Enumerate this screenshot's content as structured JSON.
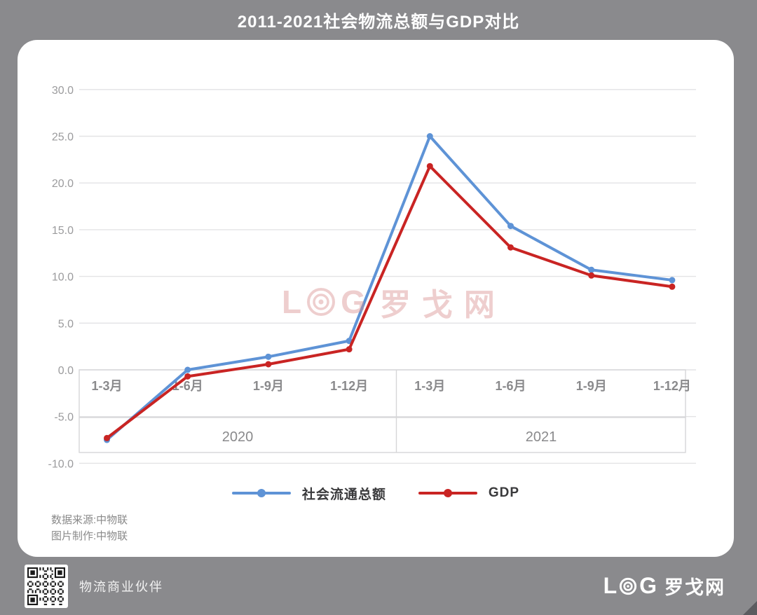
{
  "title": "2011-2021社会物流总额与GDP对比",
  "chart_data": {
    "type": "line",
    "categories": [
      "1-3月",
      "1-6月",
      "1-9月",
      "1-12月",
      "1-3月",
      "1-6月",
      "1-9月",
      "1-12月"
    ],
    "year_groups": [
      "2020",
      "2021"
    ],
    "series": [
      {
        "name": "社会流通总额",
        "color": "#5e93d6",
        "values": [
          -7.5,
          0.0,
          1.4,
          3.1,
          25.0,
          15.4,
          10.7,
          9.6
        ]
      },
      {
        "name": "GDP",
        "color": "#c92423",
        "values": [
          -7.3,
          -0.7,
          0.6,
          2.2,
          21.8,
          13.1,
          10.1,
          8.9
        ]
      }
    ],
    "yticks": [
      30.0,
      25.0,
      20.0,
      15.0,
      10.0,
      5.0,
      0.0,
      -5.0,
      -10.0
    ],
    "ylim": [
      -10.0,
      30.0
    ],
    "grid": "horizontal",
    "legend_position": "bottom",
    "title": "2011-2021社会物流总额与GDP对比",
    "xlabel": "",
    "ylabel": ""
  },
  "legend": {
    "items": [
      {
        "label": "社会流通总额"
      },
      {
        "label": "GDP"
      }
    ]
  },
  "source": {
    "line1": "数据来源:中物联",
    "line2": "图片制作:中物联"
  },
  "watermark": {
    "l": "L",
    "g": "G",
    "cn": "罗戈网"
  },
  "footer": {
    "partner_text": "物流商业伙伴",
    "logo_l": "L",
    "logo_g": "G",
    "logo_cn": "罗戈网",
    "qr_icon": "qr-code"
  },
  "colors": {
    "background": "#8a8a8d",
    "card": "#ffffff",
    "watermark": "#d98c8c",
    "gridline": "#e3e3e5",
    "axis_box": "#d6d6d8"
  }
}
